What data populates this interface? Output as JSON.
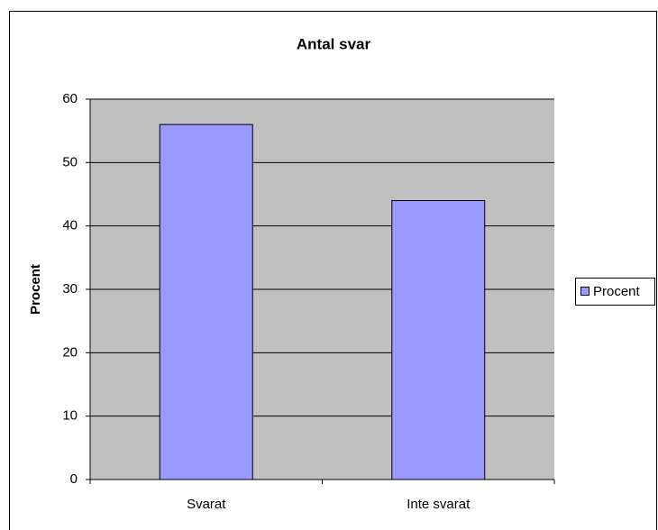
{
  "chart_data": {
    "type": "bar",
    "title": "Antal svar",
    "ylabel": "Procent",
    "categories": [
      "Svarat",
      "Inte svarat"
    ],
    "series": [
      {
        "name": "Procent",
        "color": "#9999ff",
        "values": [
          56,
          44
        ]
      }
    ],
    "ylim": [
      0,
      60
    ],
    "yticks": [
      0,
      10,
      20,
      30,
      40,
      50,
      60
    ],
    "grid": true,
    "legend": "right"
  }
}
